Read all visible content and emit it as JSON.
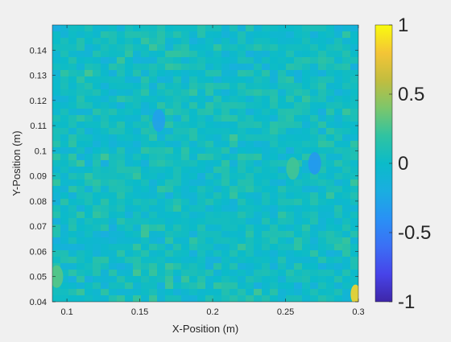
{
  "chart_data": {
    "type": "heatmap",
    "xlabel": "X-Position (m)",
    "ylabel": "Y-Position (m)",
    "xlim": [
      0.09,
      0.3
    ],
    "ylim": [
      0.04,
      0.15
    ],
    "xticks": [
      "0.1",
      "0.15",
      "0.2",
      "0.25",
      "0.3"
    ],
    "xtick_values": [
      0.1,
      0.15,
      0.2,
      0.25,
      0.3
    ],
    "yticks": [
      "0.04",
      "0.05",
      "0.06",
      "0.07",
      "0.08",
      "0.09",
      "0.1",
      "0.11",
      "0.12",
      "0.13",
      "0.14"
    ],
    "ytick_values": [
      0.04,
      0.05,
      0.06,
      0.07,
      0.08,
      0.09,
      0.1,
      0.11,
      0.12,
      0.13,
      0.14
    ],
    "colorbar": {
      "limits": [
        -1,
        1
      ],
      "ticks": [
        "1",
        "0.5",
        "0",
        "-0.5",
        "-1"
      ],
      "tick_values": [
        1,
        0.5,
        0,
        -0.5,
        -1
      ],
      "colormap": "parula"
    },
    "field_typical_range": [
      -0.35,
      0.45
    ],
    "notable_features": [
      {
        "x": 0.27,
        "y": 0.095,
        "value": -0.35
      },
      {
        "x": 0.163,
        "y": 0.112,
        "value": -0.3
      },
      {
        "x": 0.255,
        "y": 0.093,
        "value": 0.25
      },
      {
        "x": 0.298,
        "y": 0.043,
        "value": 0.85
      },
      {
        "x": 0.093,
        "y": 0.05,
        "value": 0.3
      }
    ]
  }
}
